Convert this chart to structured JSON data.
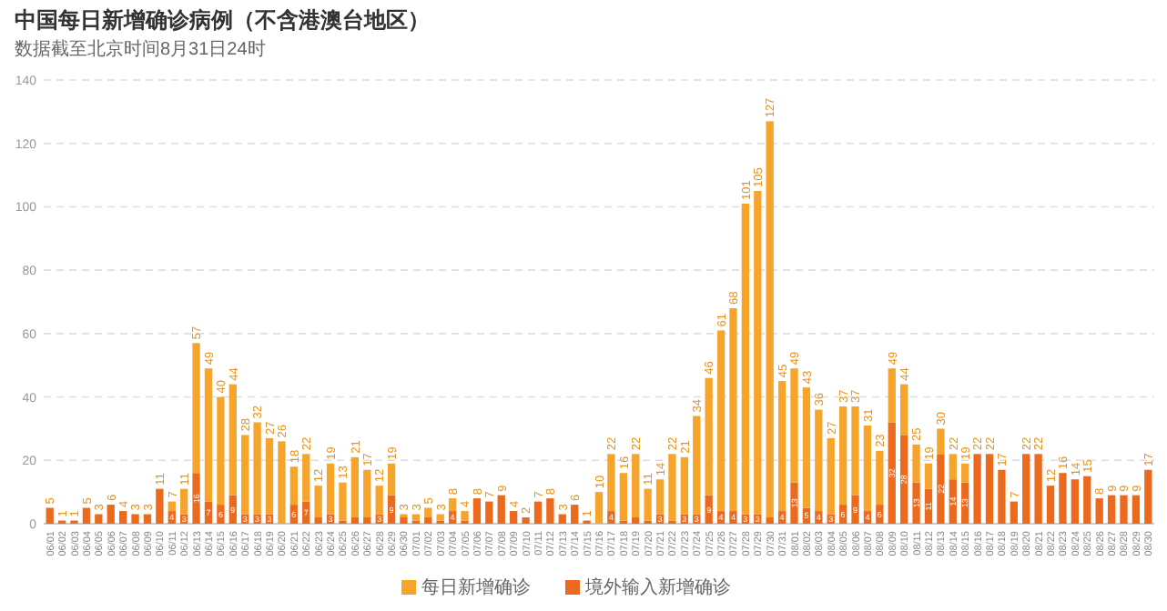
{
  "chart_data": {
    "type": "bar",
    "title": "中国每日新增确诊病例（不含港澳台地区）",
    "subtitle": "数据截至北京时间8月31日24时",
    "categories": [
      "06/01",
      "06/02",
      "06/03",
      "06/04",
      "06/05",
      "06/06",
      "06/07",
      "06/08",
      "06/09",
      "06/10",
      "06/11",
      "06/12",
      "06/13",
      "06/14",
      "06/15",
      "06/16",
      "06/17",
      "06/18",
      "06/19",
      "06/20",
      "06/21",
      "06/22",
      "06/23",
      "06/24",
      "06/25",
      "06/26",
      "06/27",
      "06/28",
      "06/29",
      "06/30",
      "07/01",
      "07/02",
      "07/03",
      "07/04",
      "07/05",
      "07/06",
      "07/07",
      "07/08",
      "07/09",
      "07/10",
      "07/11",
      "07/12",
      "07/13",
      "07/14",
      "07/15",
      "07/16",
      "07/17",
      "07/18",
      "07/19",
      "07/20",
      "07/21",
      "07/22",
      "07/23",
      "07/24",
      "07/25",
      "07/26",
      "07/27",
      "07/28",
      "07/29",
      "07/30",
      "07/31",
      "08/01",
      "08/02",
      "08/03",
      "08/04",
      "08/05",
      "08/06",
      "08/07",
      "08/08",
      "08/09",
      "08/10",
      "08/11",
      "08/12",
      "08/13",
      "08/14",
      "08/15",
      "08/16",
      "08/17",
      "08/18",
      "08/19",
      "08/20",
      "08/21",
      "08/22",
      "08/23",
      "08/24",
      "08/25",
      "08/26",
      "08/27",
      "08/28",
      "08/29",
      "08/30"
    ],
    "stacked": true,
    "series": [
      {
        "name": "境外输入新增确诊",
        "color": "#ec6a1e",
        "values": [
          5,
          1,
          1,
          5,
          3,
          6,
          4,
          3,
          3,
          11,
          4,
          3,
          16,
          7,
          6,
          9,
          3,
          3,
          3,
          0,
          6,
          7,
          2,
          3,
          1,
          2,
          2,
          3,
          9,
          2,
          1,
          2,
          1,
          4,
          1,
          8,
          7,
          9,
          4,
          2,
          7,
          8,
          3,
          6,
          1,
          0,
          4,
          1,
          2,
          1,
          3,
          1,
          3,
          3,
          9,
          4,
          4,
          3,
          3,
          2,
          4,
          13,
          5,
          4,
          3,
          6,
          9,
          4,
          6,
          32,
          28,
          13,
          11,
          22,
          14,
          13,
          22,
          22,
          17,
          7,
          22,
          22,
          12,
          16,
          14,
          15,
          8,
          9,
          9,
          9,
          17
        ],
        "value_labels": [
          "5",
          "1",
          "1",
          "5",
          "3",
          "6",
          "4",
          "3",
          "3",
          "11",
          "4",
          "3",
          "16",
          "7",
          "6",
          "9",
          "3",
          "3",
          "3",
          null,
          "6",
          "7",
          null,
          "3",
          null,
          null,
          null,
          "3",
          "9",
          null,
          null,
          null,
          null,
          "4",
          null,
          "8",
          "7",
          "9",
          "4",
          "2",
          "7",
          "8",
          "3",
          "6",
          "1",
          null,
          "4",
          null,
          null,
          null,
          "3",
          null,
          "3",
          "3",
          "9",
          "4",
          "4",
          "3",
          "3",
          null,
          "4",
          "13",
          "5",
          "4",
          "3",
          "6",
          "9",
          "4",
          "6",
          "32",
          "28",
          "13",
          "11",
          "22",
          "14",
          "13",
          "22",
          "22",
          "17",
          "7",
          "22",
          "22",
          "12",
          "16",
          "14",
          "15",
          "8",
          "9",
          "9",
          "9",
          "17"
        ]
      },
      {
        "name": "每日新增确诊",
        "color": "#f6a42c",
        "values": [
          0,
          0,
          0,
          0,
          0,
          0,
          0,
          0,
          0,
          0,
          3,
          8,
          41,
          42,
          34,
          35,
          25,
          29,
          24,
          26,
          12,
          15,
          10,
          16,
          12,
          19,
          15,
          9,
          10,
          1,
          2,
          3,
          2,
          4,
          3,
          0,
          0,
          0,
          0,
          0,
          0,
          0,
          0,
          0,
          0,
          10,
          18,
          15,
          20,
          10,
          11,
          21,
          18,
          31,
          37,
          57,
          64,
          98,
          102,
          125,
          41,
          36,
          38,
          32,
          24,
          31,
          28,
          27,
          17,
          17,
          16,
          12,
          8,
          8,
          8,
          6,
          0,
          0,
          0,
          0,
          0,
          0,
          0,
          0,
          0,
          0,
          0,
          0,
          0,
          0,
          0
        ]
      }
    ],
    "totals": [
      null,
      null,
      null,
      null,
      null,
      null,
      null,
      null,
      null,
      null,
      "7",
      "11",
      "57",
      "49",
      "40",
      "44",
      "28",
      "32",
      "27",
      "26",
      "18",
      "22",
      "12",
      "19",
      "13",
      "21",
      "17",
      "12",
      "19",
      "3",
      "3",
      "5",
      "3",
      "8",
      "4",
      null,
      null,
      null,
      null,
      null,
      null,
      null,
      null,
      null,
      null,
      "10",
      "22",
      "16",
      "22",
      "11",
      "14",
      "22",
      "21",
      "34",
      "46",
      "61",
      "68",
      "101",
      "105",
      "127",
      "45",
      "49",
      "43",
      "36",
      "27",
      "37",
      "37",
      "31",
      "23",
      "49",
      "44",
      "25",
      "19",
      "30",
      "22",
      "19",
      null,
      null,
      null,
      null,
      null,
      null,
      null,
      null,
      null,
      null,
      null,
      null,
      null,
      null,
      null
    ],
    "ylim": [
      0,
      140
    ],
    "yticks": [
      0,
      20,
      40,
      60,
      80,
      100,
      120,
      140
    ],
    "grid": "y",
    "legend": "bottom"
  }
}
